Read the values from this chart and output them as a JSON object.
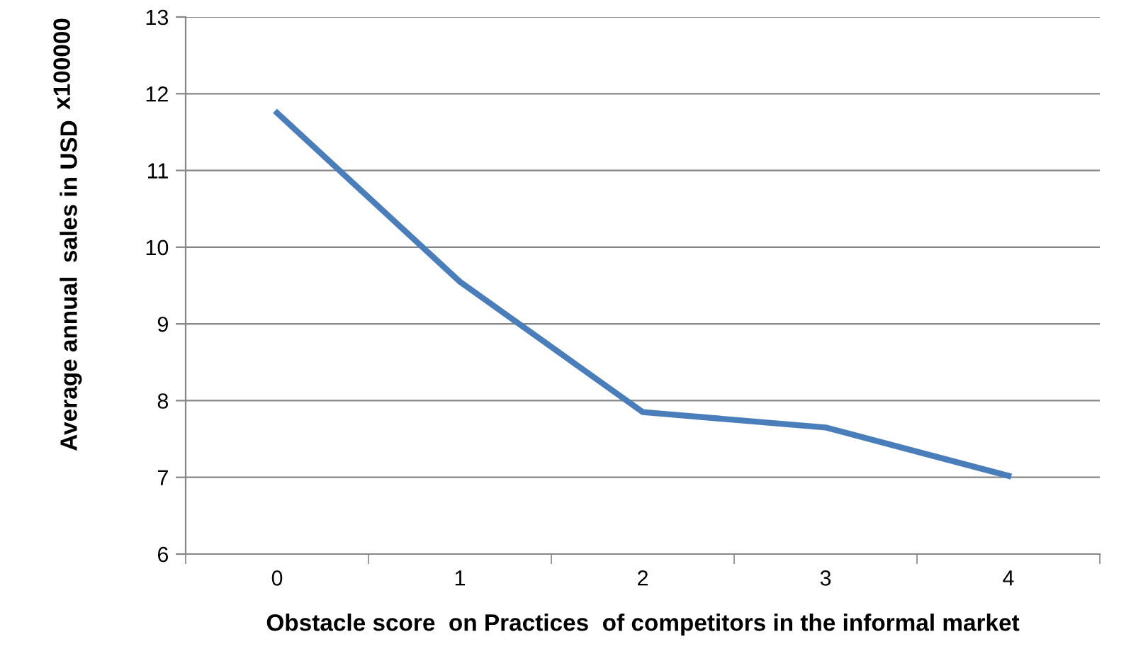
{
  "chart_data": {
    "type": "line",
    "xlabel": "Obstacle score  on Practices  of competitors in the informal market",
    "ylabel": "Average annual  sales in USD",
    "annotations": [
      "x100000"
    ],
    "categories": [
      "0",
      "1",
      "2",
      "3",
      "4"
    ],
    "series": [
      {
        "color": "#4a7ebb",
        "values": [
          11.75,
          9.55,
          7.85,
          7.65,
          7.02
        ]
      }
    ],
    "ylim": [
      6,
      13
    ],
    "yticks": [
      6,
      7,
      8,
      9,
      10,
      11,
      12,
      13
    ],
    "grid": "y",
    "legend": false,
    "marker": "none",
    "line_style": "solid"
  }
}
